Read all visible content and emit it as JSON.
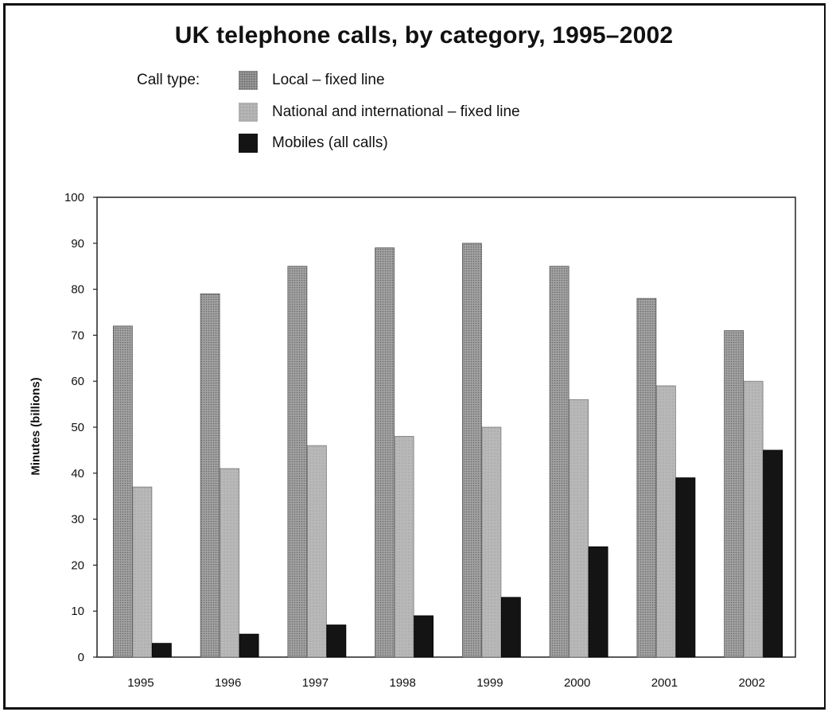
{
  "chart_data": {
    "type": "bar",
    "title": "UK telephone calls, by category, 1995–2002",
    "legend_heading": "Call type:",
    "ylabel": "Minutes (billions)",
    "xlabel": "",
    "ylim": [
      0,
      100
    ],
    "yticks": [
      "0",
      "10",
      "20",
      "30",
      "40",
      "50",
      "60",
      "70",
      "80",
      "90",
      "100"
    ],
    "categories": [
      "1995",
      "1996",
      "1997",
      "1998",
      "1999",
      "2000",
      "2001",
      "2002"
    ],
    "series": [
      {
        "name": "Local – fixed line",
        "color": "#9a9a9a",
        "pattern": "dotted",
        "values": [
          72,
          79,
          85,
          89,
          90,
          85,
          78,
          71
        ]
      },
      {
        "name": "National and international – fixed line",
        "color": "#b5b5b5",
        "pattern": "light",
        "values": [
          37,
          41,
          46,
          48,
          50,
          56,
          59,
          60
        ]
      },
      {
        "name": "Mobiles (all calls)",
        "color": "#141414",
        "pattern": "solid",
        "values": [
          3,
          5,
          7,
          9,
          13,
          24,
          39,
          45
        ]
      }
    ],
    "grid": false,
    "legend_position": "top-left"
  }
}
